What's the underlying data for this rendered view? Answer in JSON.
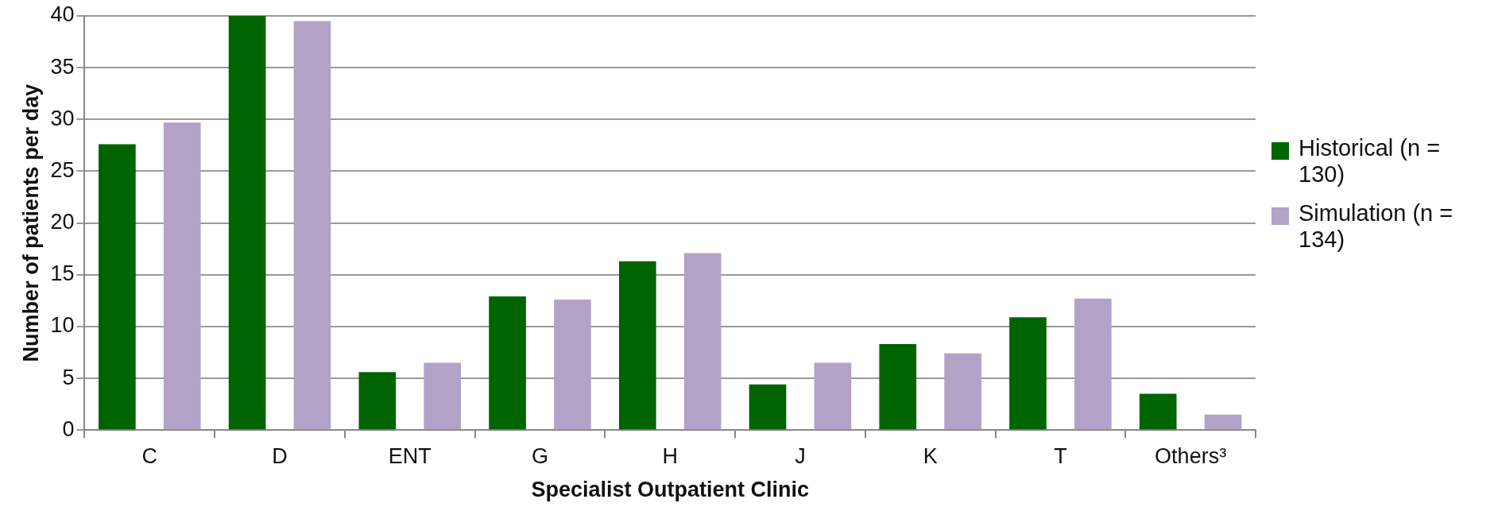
{
  "chart_data": {
    "type": "bar",
    "xlabel": "Specialist Outpatient Clinic",
    "ylabel": "Number of patients per day",
    "categories": [
      "C",
      "D",
      "ENT",
      "G",
      "H",
      "J",
      "K",
      "T",
      "Others³"
    ],
    "series": [
      {
        "name": "Historical (n = 130)",
        "color": "#006400",
        "values": [
          27.6,
          40,
          5.6,
          12.9,
          16.3,
          4.4,
          8.3,
          10.9,
          3.5
        ]
      },
      {
        "name": "Simulation (n = 134)",
        "color": "#b3a2c7",
        "values": [
          29.7,
          39.5,
          6.5,
          12.6,
          17.1,
          6.5,
          7.4,
          12.7,
          1.5
        ]
      }
    ],
    "ylim": [
      0,
      40
    ],
    "yticks": [
      0,
      5,
      10,
      15,
      20,
      25,
      30,
      35,
      40
    ],
    "grid": "y",
    "legend": "right"
  }
}
